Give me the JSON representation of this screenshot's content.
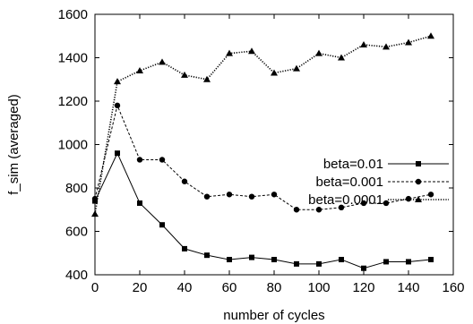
{
  "chart_data": {
    "type": "line",
    "xlabel": "number of cycles",
    "ylabel": "f_sim (averaged)",
    "xlim": [
      0,
      160
    ],
    "ylim": [
      400,
      1600
    ],
    "xticks": [
      0,
      20,
      40,
      60,
      80,
      100,
      120,
      140,
      160
    ],
    "yticks": [
      400,
      600,
      800,
      1000,
      1200,
      1400,
      1600
    ],
    "grid": false,
    "legend_position": "right",
    "x": [
      0,
      10,
      20,
      30,
      40,
      50,
      60,
      70,
      80,
      90,
      100,
      110,
      120,
      130,
      140,
      150
    ],
    "series": [
      {
        "name": "beta=0.01",
        "marker": "square",
        "line": "solid",
        "values": [
          740,
          960,
          730,
          630,
          520,
          490,
          470,
          480,
          470,
          450,
          450,
          470,
          430,
          460,
          460,
          470
        ]
      },
      {
        "name": "beta=0.001",
        "marker": "circle",
        "line": "dashed",
        "values": [
          750,
          1180,
          930,
          930,
          830,
          760,
          770,
          760,
          770,
          700,
          700,
          710,
          730,
          730,
          750,
          770
        ]
      },
      {
        "name": "beta=0.0001",
        "marker": "triangle",
        "line": "dotted",
        "values": [
          680,
          1290,
          1340,
          1380,
          1320,
          1300,
          1420,
          1430,
          1330,
          1350,
          1420,
          1400,
          1460,
          1450,
          1470,
          1500
        ]
      }
    ]
  }
}
